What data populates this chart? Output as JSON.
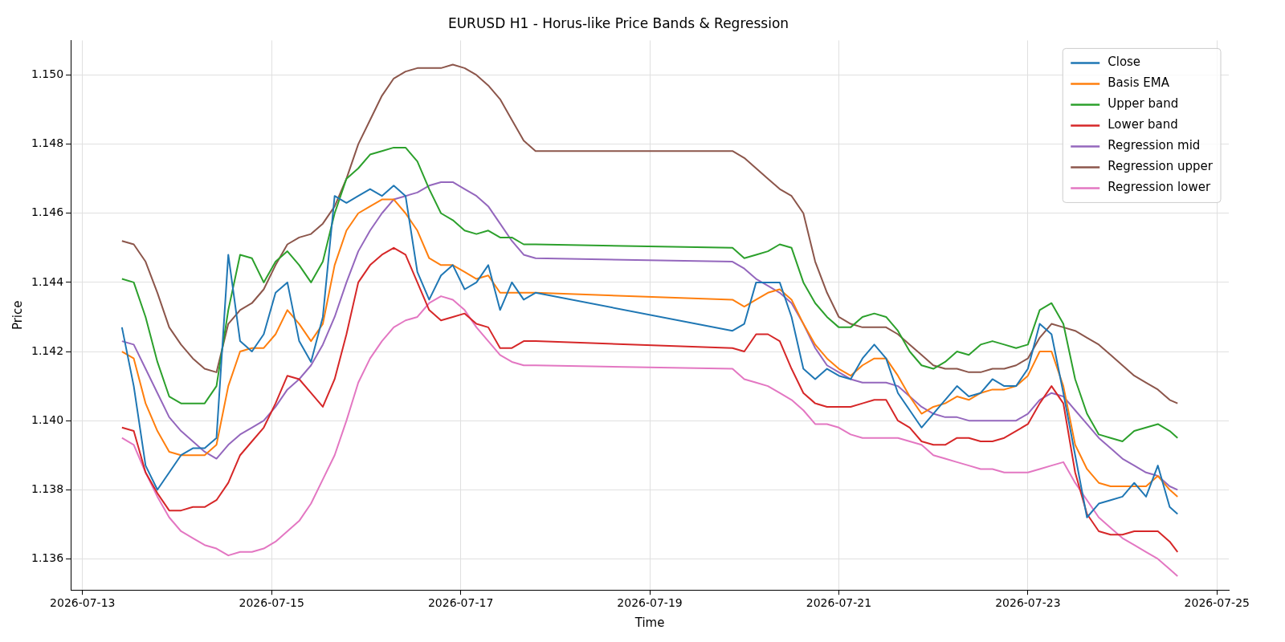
{
  "chart_data": {
    "type": "line",
    "title": "EURUSD H1 - Horus-like Price Bands & Regression",
    "xlabel": "Time",
    "ylabel": "Price",
    "x": [
      "2026-07-13T10:00",
      "2026-07-13T13:00",
      "2026-07-13T16:00",
      "2026-07-13T19:00",
      "2026-07-13T22:00",
      "2026-07-14T01:00",
      "2026-07-14T04:00",
      "2026-07-14T07:00",
      "2026-07-14T10:00",
      "2026-07-14T13:00",
      "2026-07-14T16:00",
      "2026-07-14T19:00",
      "2026-07-14T22:00",
      "2026-07-15T01:00",
      "2026-07-15T04:00",
      "2026-07-15T07:00",
      "2026-07-15T10:00",
      "2026-07-15T13:00",
      "2026-07-15T16:00",
      "2026-07-15T19:00",
      "2026-07-15T22:00",
      "2026-07-16T01:00",
      "2026-07-16T04:00",
      "2026-07-16T07:00",
      "2026-07-16T10:00",
      "2026-07-16T13:00",
      "2026-07-16T16:00",
      "2026-07-16T19:00",
      "2026-07-16T22:00",
      "2026-07-17T01:00",
      "2026-07-17T04:00",
      "2026-07-17T07:00",
      "2026-07-17T10:00",
      "2026-07-17T13:00",
      "2026-07-17T16:00",
      "2026-07-17T19:00",
      "2026-07-19T21:00",
      "2026-07-20T00:00",
      "2026-07-20T03:00",
      "2026-07-20T06:00",
      "2026-07-20T09:00",
      "2026-07-20T12:00",
      "2026-07-20T15:00",
      "2026-07-20T18:00",
      "2026-07-20T21:00",
      "2026-07-21T00:00",
      "2026-07-21T03:00",
      "2026-07-21T06:00",
      "2026-07-21T09:00",
      "2026-07-21T12:00",
      "2026-07-21T15:00",
      "2026-07-21T18:00",
      "2026-07-21T21:00",
      "2026-07-22T00:00",
      "2026-07-22T03:00",
      "2026-07-22T06:00",
      "2026-07-22T09:00",
      "2026-07-22T12:00",
      "2026-07-22T15:00",
      "2026-07-22T18:00",
      "2026-07-22T21:00",
      "2026-07-23T00:00",
      "2026-07-23T03:00",
      "2026-07-23T06:00",
      "2026-07-23T09:00",
      "2026-07-23T12:00",
      "2026-07-23T15:00",
      "2026-07-23T18:00",
      "2026-07-23T21:00",
      "2026-07-24T00:00",
      "2026-07-24T03:00",
      "2026-07-24T06:00",
      "2026-07-24T09:00",
      "2026-07-24T12:00",
      "2026-07-24T14:00"
    ],
    "series": [
      {
        "name": "Close",
        "color": "#1f77b4",
        "values": [
          1.1427,
          1.141,
          1.1387,
          1.138,
          1.1385,
          1.139,
          1.1392,
          1.1392,
          1.1395,
          1.1448,
          1.1423,
          1.142,
          1.1425,
          1.1437,
          1.144,
          1.1423,
          1.1417,
          1.143,
          1.1465,
          1.1463,
          1.1465,
          1.1467,
          1.1465,
          1.1468,
          1.1465,
          1.1443,
          1.1435,
          1.1442,
          1.1445,
          1.1438,
          1.144,
          1.1445,
          1.1432,
          1.144,
          1.1435,
          1.1437,
          1.1426,
          1.1428,
          1.144,
          1.144,
          1.144,
          1.143,
          1.1415,
          1.1412,
          1.1415,
          1.1413,
          1.1412,
          1.1418,
          1.1422,
          1.1418,
          1.1408,
          1.1403,
          1.1398,
          1.1402,
          1.1406,
          1.141,
          1.1407,
          1.1408,
          1.1412,
          1.141,
          1.141,
          1.1415,
          1.1428,
          1.1425,
          1.1408,
          1.139,
          1.1372,
          1.1376,
          1.1377,
          1.1378,
          1.1382,
          1.1378,
          1.1387,
          1.1375,
          1.1373
        ]
      },
      {
        "name": "Basis EMA",
        "color": "#ff7f0e",
        "values": [
          1.142,
          1.1418,
          1.1405,
          1.1397,
          1.1391,
          1.139,
          1.139,
          1.139,
          1.1393,
          1.141,
          1.142,
          1.1421,
          1.1421,
          1.1425,
          1.1432,
          1.1428,
          1.1423,
          1.1428,
          1.1445,
          1.1455,
          1.146,
          1.1462,
          1.1464,
          1.1464,
          1.146,
          1.1455,
          1.1447,
          1.1445,
          1.1445,
          1.1443,
          1.1441,
          1.1442,
          1.1437,
          1.1437,
          1.1437,
          1.1437,
          1.1435,
          1.1433,
          1.1435,
          1.1437,
          1.1438,
          1.1435,
          1.1428,
          1.1422,
          1.1418,
          1.1415,
          1.1413,
          1.1416,
          1.1418,
          1.1418,
          1.1413,
          1.1407,
          1.1402,
          1.1404,
          1.1405,
          1.1407,
          1.1406,
          1.1408,
          1.1409,
          1.1409,
          1.141,
          1.1413,
          1.142,
          1.142,
          1.141,
          1.1393,
          1.1386,
          1.1382,
          1.1381,
          1.1381,
          1.1381,
          1.1381,
          1.1384,
          1.138,
          1.1378
        ]
      },
      {
        "name": "Upper band",
        "color": "#2ca02c",
        "values": [
          1.1441,
          1.144,
          1.143,
          1.1417,
          1.1407,
          1.1405,
          1.1405,
          1.1405,
          1.141,
          1.1432,
          1.1448,
          1.1447,
          1.144,
          1.1446,
          1.1449,
          1.1445,
          1.144,
          1.1446,
          1.146,
          1.147,
          1.1473,
          1.1477,
          1.1478,
          1.1479,
          1.1479,
          1.1475,
          1.1467,
          1.146,
          1.1458,
          1.1455,
          1.1454,
          1.1455,
          1.1453,
          1.1453,
          1.1451,
          1.1451,
          1.145,
          1.1447,
          1.1448,
          1.1449,
          1.1451,
          1.145,
          1.144,
          1.1434,
          1.143,
          1.1427,
          1.1427,
          1.143,
          1.1431,
          1.143,
          1.1426,
          1.142,
          1.1416,
          1.1415,
          1.1417,
          1.142,
          1.1419,
          1.1422,
          1.1423,
          1.1422,
          1.1421,
          1.1422,
          1.1432,
          1.1434,
          1.1428,
          1.1412,
          1.1402,
          1.1396,
          1.1395,
          1.1394,
          1.1397,
          1.1398,
          1.1399,
          1.1397,
          1.1395
        ]
      },
      {
        "name": "Lower band",
        "color": "#d62728",
        "values": [
          1.1398,
          1.1397,
          1.1385,
          1.1379,
          1.1374,
          1.1374,
          1.1375,
          1.1375,
          1.1377,
          1.1382,
          1.139,
          1.1394,
          1.1398,
          1.1405,
          1.1413,
          1.1412,
          1.1408,
          1.1404,
          1.1412,
          1.1425,
          1.144,
          1.1445,
          1.1448,
          1.145,
          1.1448,
          1.144,
          1.1432,
          1.1429,
          1.143,
          1.1431,
          1.1428,
          1.1427,
          1.1421,
          1.1421,
          1.1423,
          1.1423,
          1.1421,
          1.142,
          1.1425,
          1.1425,
          1.1423,
          1.1415,
          1.1408,
          1.1405,
          1.1404,
          1.1404,
          1.1404,
          1.1405,
          1.1406,
          1.1406,
          1.14,
          1.1398,
          1.1394,
          1.1393,
          1.1393,
          1.1395,
          1.1395,
          1.1394,
          1.1394,
          1.1395,
          1.1397,
          1.1399,
          1.1405,
          1.141,
          1.1405,
          1.1385,
          1.1373,
          1.1368,
          1.1367,
          1.1367,
          1.1368,
          1.1368,
          1.1368,
          1.1365,
          1.1362
        ]
      },
      {
        "name": "Regression mid",
        "color": "#9467bd",
        "values": [
          1.1423,
          1.1422,
          1.1415,
          1.1408,
          1.1401,
          1.1397,
          1.1394,
          1.1391,
          1.1389,
          1.1393,
          1.1396,
          1.1398,
          1.14,
          1.1404,
          1.1409,
          1.1412,
          1.1416,
          1.1422,
          1.143,
          1.144,
          1.1449,
          1.1455,
          1.146,
          1.1464,
          1.1465,
          1.1466,
          1.1468,
          1.1469,
          1.1469,
          1.1467,
          1.1465,
          1.1462,
          1.1457,
          1.1452,
          1.1448,
          1.1447,
          1.1446,
          1.1444,
          1.1441,
          1.1439,
          1.1437,
          1.1434,
          1.1428,
          1.1421,
          1.1416,
          1.1414,
          1.1412,
          1.1411,
          1.1411,
          1.1411,
          1.141,
          1.1407,
          1.1404,
          1.1402,
          1.1401,
          1.1401,
          1.14,
          1.14,
          1.14,
          1.14,
          1.14,
          1.1402,
          1.1406,
          1.1408,
          1.1407,
          1.1403,
          1.1399,
          1.1395,
          1.1392,
          1.1389,
          1.1387,
          1.1385,
          1.1384,
          1.1381,
          1.138
        ]
      },
      {
        "name": "Regression upper",
        "color": "#8c564b",
        "values": [
          1.1452,
          1.1451,
          1.1446,
          1.1437,
          1.1427,
          1.1422,
          1.1418,
          1.1415,
          1.1414,
          1.1428,
          1.1432,
          1.1434,
          1.1438,
          1.1445,
          1.1451,
          1.1453,
          1.1454,
          1.1457,
          1.1462,
          1.147,
          1.148,
          1.1487,
          1.1494,
          1.1499,
          1.1501,
          1.1502,
          1.1502,
          1.1502,
          1.1503,
          1.1502,
          1.15,
          1.1497,
          1.1493,
          1.1487,
          1.1481,
          1.1478,
          1.1478,
          1.1476,
          1.1473,
          1.147,
          1.1467,
          1.1465,
          1.146,
          1.1446,
          1.1437,
          1.143,
          1.1428,
          1.1427,
          1.1427,
          1.1427,
          1.1425,
          1.1422,
          1.1419,
          1.1416,
          1.1415,
          1.1415,
          1.1414,
          1.1414,
          1.1415,
          1.1415,
          1.1416,
          1.1418,
          1.1424,
          1.1428,
          1.1427,
          1.1426,
          1.1424,
          1.1422,
          1.1419,
          1.1416,
          1.1413,
          1.1411,
          1.1409,
          1.1406,
          1.1405
        ]
      },
      {
        "name": "Regression lower",
        "color": "#e377c2",
        "values": [
          1.1395,
          1.1393,
          1.1385,
          1.1378,
          1.1372,
          1.1368,
          1.1366,
          1.1364,
          1.1363,
          1.1361,
          1.1362,
          1.1362,
          1.1363,
          1.1365,
          1.1368,
          1.1371,
          1.1376,
          1.1383,
          1.139,
          1.14,
          1.1411,
          1.1418,
          1.1423,
          1.1427,
          1.1429,
          1.143,
          1.1434,
          1.1436,
          1.1435,
          1.1432,
          1.1427,
          1.1423,
          1.1419,
          1.1417,
          1.1416,
          1.1416,
          1.1415,
          1.1412,
          1.1411,
          1.141,
          1.1408,
          1.1406,
          1.1403,
          1.1399,
          1.1399,
          1.1398,
          1.1396,
          1.1395,
          1.1395,
          1.1395,
          1.1395,
          1.1394,
          1.1393,
          1.139,
          1.1389,
          1.1388,
          1.1387,
          1.1386,
          1.1386,
          1.1385,
          1.1385,
          1.1385,
          1.1386,
          1.1387,
          1.1388,
          1.1382,
          1.1377,
          1.1372,
          1.1369,
          1.1366,
          1.1364,
          1.1362,
          1.136,
          1.1357,
          1.1355
        ]
      }
    ],
    "xlim": [
      "2026-07-12T21:00",
      "2026-07-25T03:00"
    ],
    "xticks": [
      "2026-07-13",
      "2026-07-15",
      "2026-07-17",
      "2026-07-19",
      "2026-07-21",
      "2026-07-23",
      "2026-07-25"
    ],
    "ylim": [
      1.1351,
      1.151
    ],
    "yticks": [
      {
        "value": 1.136,
        "label": "1.136"
      },
      {
        "value": 1.138,
        "label": "1.138"
      },
      {
        "value": 1.14,
        "label": "1.140"
      },
      {
        "value": 1.142,
        "label": "1.142"
      },
      {
        "value": 1.144,
        "label": "1.144"
      },
      {
        "value": 1.146,
        "label": "1.146"
      },
      {
        "value": 1.148,
        "label": "1.148"
      },
      {
        "value": 1.15,
        "label": "1.150"
      }
    ],
    "grid": true,
    "legend": "top right",
    "line_style": "solid",
    "marker": "none"
  }
}
